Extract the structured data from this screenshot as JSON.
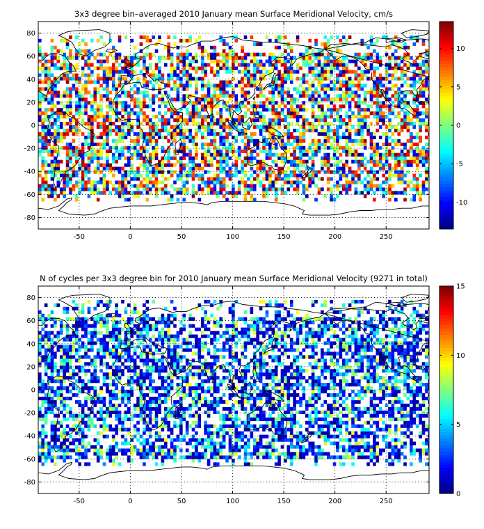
{
  "chart_data": [
    {
      "type": "heatmap",
      "title": "3x3 degree bin–averaged 2010 January mean Surface Meridional Velocity, cm/s",
      "xlim": [
        -90,
        292
      ],
      "ylim": [
        -90,
        90
      ],
      "xticks": [
        -50,
        0,
        50,
        100,
        150,
        200,
        250
      ],
      "yticks": [
        -80,
        -60,
        -40,
        -20,
        0,
        20,
        40,
        60,
        80
      ],
      "bin_size_deg": 3,
      "colorbar": {
        "range": [
          -13.5,
          13.5
        ],
        "ticks": [
          -10,
          -5,
          0,
          5,
          10
        ],
        "colormap": "jet"
      },
      "grid": true,
      "legend": "colorbar-right"
    },
    {
      "type": "heatmap",
      "title": "N of cycles per 3x3 degree bin for 2010 January mean Surface Meridional Velocity (9271 in total)",
      "xlim": [
        -90,
        292
      ],
      "ylim": [
        -90,
        90
      ],
      "xticks": [
        -50,
        0,
        50,
        100,
        150,
        200,
        250
      ],
      "yticks": [
        -80,
        -60,
        -40,
        -20,
        0,
        20,
        40,
        60,
        80
      ],
      "bin_size_deg": 3,
      "colorbar": {
        "range": [
          0,
          15
        ],
        "ticks": [
          0,
          5,
          10,
          15
        ],
        "colormap": "jet"
      },
      "grid": true,
      "legend": "colorbar-right"
    }
  ]
}
